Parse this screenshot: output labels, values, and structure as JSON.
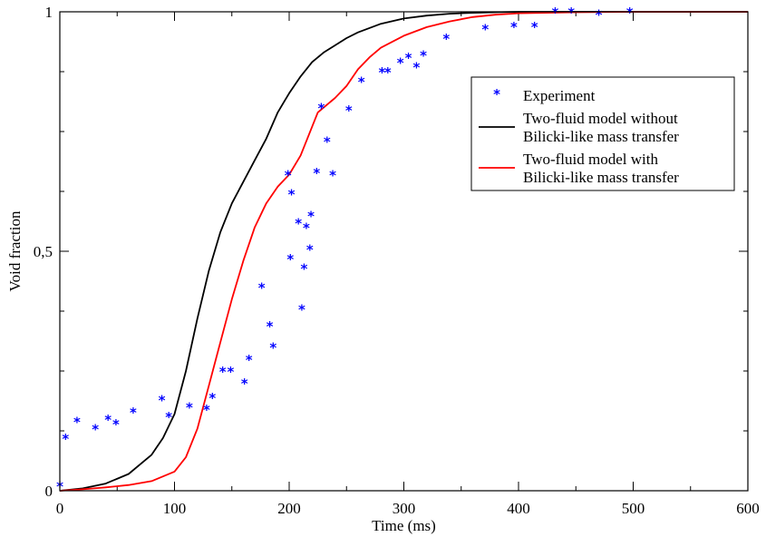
{
  "chart_data": {
    "type": "line",
    "xlabel": "Time (ms)",
    "ylabel": "Void fraction",
    "xlim": [
      0,
      600
    ],
    "ylim": [
      0,
      1
    ],
    "xticks": [
      0,
      100,
      200,
      300,
      400,
      500,
      600
    ],
    "xtick_labels": [
      "0",
      "100",
      "200",
      "300",
      "400",
      "500",
      "600"
    ],
    "yticks": [
      0,
      0.5,
      1
    ],
    "ytick_labels": [
      "0",
      "0,5",
      "1"
    ],
    "grid": false,
    "legend_position": "right",
    "series": [
      {
        "name": "Experiment",
        "kind": "scatter",
        "marker": "*",
        "color": "#0000ff",
        "x": [
          0,
          5,
          15,
          31,
          42,
          49,
          64,
          89,
          95,
          113,
          128,
          133,
          142,
          149,
          161,
          165,
          176,
          183,
          186,
          199,
          201,
          202,
          208,
          211,
          213,
          215,
          218,
          219,
          224,
          228,
          233,
          238,
          252,
          263,
          281,
          286,
          297,
          304,
          311,
          317,
          337,
          371,
          396,
          414,
          432,
          446,
          470,
          497
        ],
        "y": [
          0.01,
          0.11,
          0.145,
          0.13,
          0.15,
          0.14,
          0.165,
          0.19,
          0.155,
          0.175,
          0.17,
          0.195,
          0.25,
          0.25,
          0.225,
          0.275,
          0.425,
          0.345,
          0.3,
          0.66,
          0.485,
          0.62,
          0.56,
          0.38,
          0.465,
          0.55,
          0.505,
          0.575,
          0.665,
          0.8,
          0.73,
          0.66,
          0.795,
          0.855,
          0.875,
          0.875,
          0.895,
          0.905,
          0.885,
          0.91,
          0.945,
          0.965,
          0.97,
          0.97,
          1.0,
          1.0,
          0.995,
          1.0
        ]
      },
      {
        "name": "Two-fluid model without Bilicki-like mass transfer",
        "legend_lines": [
          "Two-fluid model without",
          "Bilicki-like mass transfer"
        ],
        "kind": "line",
        "color": "#000000",
        "x": [
          0,
          20,
          40,
          60,
          80,
          90,
          100,
          110,
          120,
          130,
          140,
          150,
          160,
          170,
          180,
          190,
          195,
          200,
          210,
          220,
          230,
          240,
          250,
          260,
          280,
          300,
          320,
          340,
          360,
          380,
          400,
          450,
          500,
          550,
          600
        ],
        "y": [
          0.0,
          0.005,
          0.015,
          0.035,
          0.075,
          0.11,
          0.16,
          0.25,
          0.36,
          0.46,
          0.54,
          0.6,
          0.645,
          0.69,
          0.735,
          0.79,
          0.81,
          0.83,
          0.865,
          0.895,
          0.915,
          0.93,
          0.945,
          0.957,
          0.975,
          0.986,
          0.992,
          0.996,
          0.998,
          0.999,
          1.0,
          1.0,
          1.0,
          1.0,
          1.0
        ]
      },
      {
        "name": "Two-fluid model with Bilicki-like mass transfer",
        "legend_lines": [
          "Two-fluid model with",
          "Bilicki-like mass transfer"
        ],
        "kind": "line",
        "color": "#ff0000",
        "x": [
          0,
          20,
          40,
          60,
          80,
          100,
          110,
          120,
          130,
          140,
          150,
          160,
          170,
          180,
          190,
          200,
          210,
          220,
          225,
          230,
          240,
          250,
          260,
          270,
          280,
          300,
          320,
          340,
          360,
          380,
          400,
          450,
          500,
          550,
          600
        ],
        "y": [
          0.0,
          0.003,
          0.007,
          0.012,
          0.02,
          0.04,
          0.07,
          0.13,
          0.22,
          0.31,
          0.4,
          0.48,
          0.55,
          0.6,
          0.635,
          0.66,
          0.7,
          0.76,
          0.79,
          0.8,
          0.82,
          0.845,
          0.88,
          0.905,
          0.925,
          0.95,
          0.968,
          0.98,
          0.989,
          0.994,
          0.997,
          0.999,
          1.0,
          1.0,
          1.0
        ]
      }
    ]
  }
}
